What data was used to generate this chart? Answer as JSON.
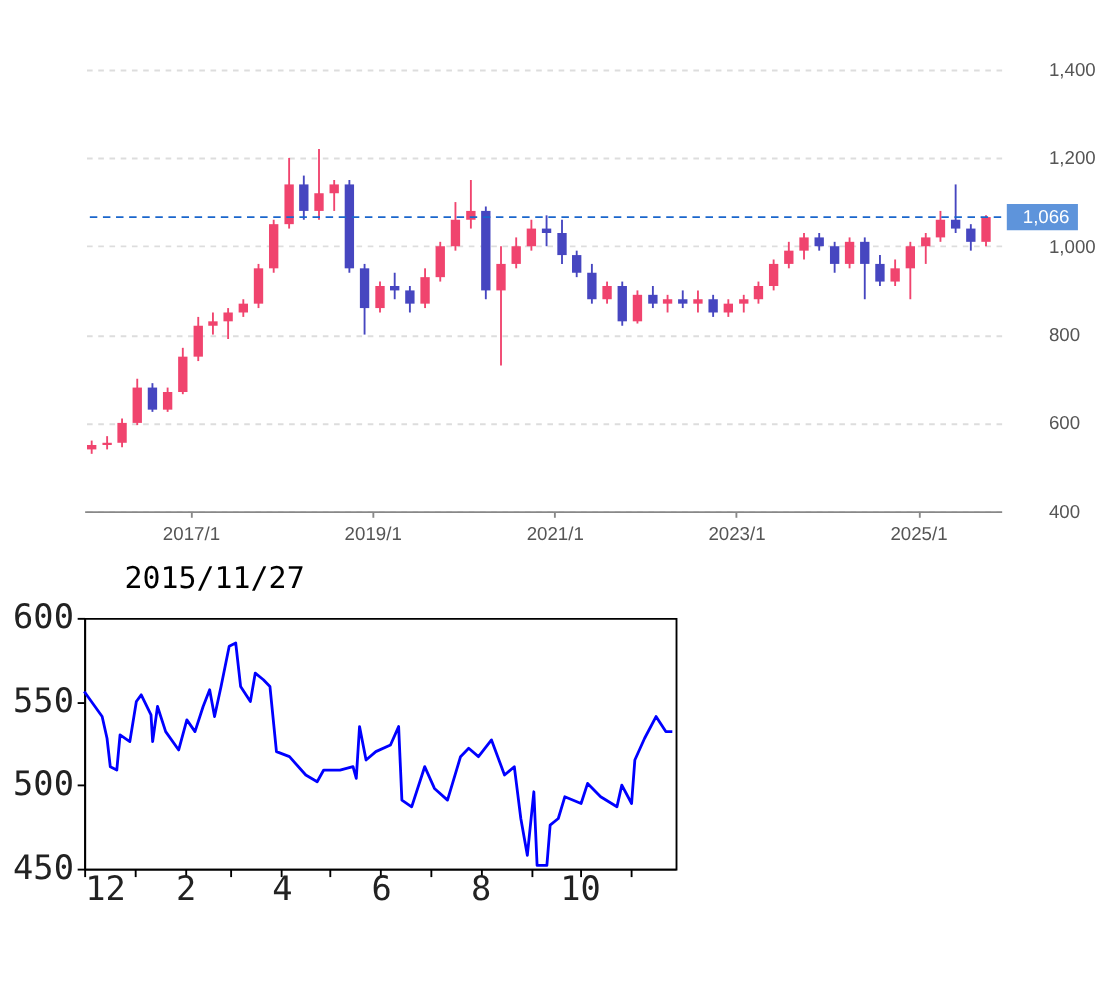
{
  "chart_data": [
    {
      "type": "candlestick",
      "x": [
        "2015-12",
        "2016-02",
        "2016-04",
        "2016-06",
        "2016-08",
        "2016-10",
        "2016-12",
        "2017-02",
        "2017-04",
        "2017-06",
        "2017-08",
        "2017-10",
        "2017-12",
        "2018-02",
        "2018-04",
        "2018-06",
        "2018-08",
        "2018-10",
        "2018-12",
        "2019-02",
        "2019-04",
        "2019-06",
        "2019-08",
        "2019-10",
        "2019-12",
        "2020-02",
        "2020-04",
        "2020-06",
        "2020-08",
        "2020-10",
        "2020-12",
        "2021-02",
        "2021-04",
        "2021-06",
        "2021-08",
        "2021-10",
        "2021-12",
        "2022-02",
        "2022-04",
        "2022-06",
        "2022-08",
        "2022-10",
        "2022-12",
        "2023-02",
        "2023-04",
        "2023-06",
        "2023-08",
        "2023-10",
        "2023-12",
        "2024-02",
        "2024-04",
        "2024-06",
        "2024-08",
        "2024-10",
        "2024-12",
        "2025-02",
        "2025-04",
        "2025-06",
        "2025-08",
        "2025-10"
      ],
      "ohlc": [
        [
          540,
          560,
          530,
          550
        ],
        [
          550,
          570,
          540,
          555
        ],
        [
          555,
          610,
          545,
          600
        ],
        [
          600,
          700,
          595,
          680
        ],
        [
          680,
          690,
          625,
          630
        ],
        [
          630,
          680,
          625,
          670
        ],
        [
          670,
          770,
          665,
          750
        ],
        [
          750,
          840,
          740,
          820
        ],
        [
          820,
          850,
          800,
          830
        ],
        [
          830,
          860,
          790,
          850
        ],
        [
          850,
          880,
          840,
          870
        ],
        [
          870,
          960,
          860,
          950
        ],
        [
          950,
          1060,
          940,
          1050
        ],
        [
          1050,
          1200,
          1040,
          1140
        ],
        [
          1140,
          1160,
          1060,
          1080
        ],
        [
          1080,
          1220,
          1060,
          1120
        ],
        [
          1120,
          1150,
          1080,
          1140
        ],
        [
          1140,
          1150,
          940,
          950
        ],
        [
          950,
          960,
          800,
          860
        ],
        [
          860,
          920,
          850,
          910
        ],
        [
          910,
          940,
          880,
          900
        ],
        [
          900,
          910,
          850,
          870
        ],
        [
          870,
          950,
          860,
          930
        ],
        [
          930,
          1010,
          920,
          1000
        ],
        [
          1000,
          1100,
          990,
          1060
        ],
        [
          1060,
          1150,
          1040,
          1080
        ],
        [
          1080,
          1090,
          880,
          900
        ],
        [
          900,
          1000,
          730,
          960
        ],
        [
          960,
          1020,
          950,
          1000
        ],
        [
          1000,
          1060,
          990,
          1040
        ],
        [
          1040,
          1070,
          1000,
          1030
        ],
        [
          1030,
          1060,
          960,
          980
        ],
        [
          980,
          990,
          930,
          940
        ],
        [
          940,
          960,
          870,
          880
        ],
        [
          880,
          920,
          870,
          910
        ],
        [
          910,
          920,
          820,
          830
        ],
        [
          830,
          900,
          825,
          890
        ],
        [
          890,
          910,
          860,
          870
        ],
        [
          870,
          890,
          850,
          880
        ],
        [
          880,
          900,
          860,
          870
        ],
        [
          870,
          900,
          850,
          880
        ],
        [
          880,
          890,
          840,
          850
        ],
        [
          850,
          880,
          840,
          870
        ],
        [
          870,
          890,
          850,
          880
        ],
        [
          880,
          920,
          870,
          910
        ],
        [
          910,
          970,
          900,
          960
        ],
        [
          960,
          1010,
          950,
          990
        ],
        [
          990,
          1030,
          970,
          1020
        ],
        [
          1020,
          1030,
          990,
          1000
        ],
        [
          1000,
          1010,
          940,
          960
        ],
        [
          960,
          1020,
          950,
          1010
        ],
        [
          1010,
          1020,
          880,
          960
        ],
        [
          960,
          980,
          910,
          920
        ],
        [
          920,
          970,
          910,
          950
        ],
        [
          950,
          1010,
          880,
          1000
        ],
        [
          1000,
          1030,
          960,
          1020
        ],
        [
          1020,
          1080,
          1010,
          1060
        ],
        [
          1060,
          1140,
          1030,
          1040
        ],
        [
          1040,
          1050,
          990,
          1010
        ],
        [
          1010,
          1070,
          1000,
          1066
        ]
      ],
      "colors": [
        "#f0446e",
        "#f0446e",
        "#f0446e",
        "#f0446e",
        "#4646c0",
        "#f0446e",
        "#f0446e",
        "#f0446e",
        "#f0446e",
        "#f0446e",
        "#f0446e",
        "#f0446e",
        "#f0446e",
        "#f0446e",
        "#4646c0",
        "#f0446e",
        "#f0446e",
        "#4646c0",
        "#4646c0",
        "#f0446e",
        "#4646c0",
        "#4646c0",
        "#f0446e",
        "#f0446e",
        "#f0446e",
        "#f0446e",
        "#4646c0",
        "#f0446e",
        "#f0446e",
        "#f0446e",
        "#4646c0",
        "#4646c0",
        "#4646c0",
        "#4646c0",
        "#f0446e",
        "#4646c0",
        "#f0446e",
        "#4646c0",
        "#f0446e",
        "#4646c0",
        "#f0446e",
        "#4646c0",
        "#f0446e",
        "#f0446e",
        "#f0446e",
        "#f0446e",
        "#f0446e",
        "#f0446e",
        "#4646c0",
        "#4646c0",
        "#f0446e",
        "#4646c0",
        "#4646c0",
        "#f0446e",
        "#f0446e",
        "#f0446e",
        "#f0446e",
        "#4646c0",
        "#4646c0",
        "#f0446e"
      ],
      "xlim": [
        "2015-11",
        "2025-12"
      ],
      "xticks": [
        {
          "value": "2017-01",
          "label": "2017/1"
        },
        {
          "value": "2019-01",
          "label": "2019/1"
        },
        {
          "value": "2021-01",
          "label": "2021/1"
        },
        {
          "value": "2023-01",
          "label": "2023/1"
        },
        {
          "value": "2025-01",
          "label": "2025/1"
        }
      ],
      "ylim": [
        400,
        1400
      ],
      "yticks": [
        400,
        600,
        800,
        {
          "value": 1000,
          "label": "1,000"
        },
        {
          "value": 1200,
          "label": "1,200"
        },
        {
          "value": 1400,
          "label": "1,400"
        }
      ],
      "ref_lines": [
        {
          "axis": "y",
          "value": 1066,
          "label": "1,066",
          "color": "#1a66cc",
          "line_style": "dashed"
        }
      ],
      "grid": "y"
    },
    {
      "type": "line",
      "title": "2015/11/27",
      "x": [
        "2014-12-01",
        "2014-12-12",
        "2014-12-15",
        "2014-12-17",
        "2014-12-21",
        "2014-12-23",
        "2014-12-29",
        "2015-01-02",
        "2015-01-05",
        "2015-01-11",
        "2015-01-12",
        "2015-01-15",
        "2015-01-20",
        "2015-01-28",
        "2015-02-02",
        "2015-02-07",
        "2015-02-12",
        "2015-02-16",
        "2015-02-19",
        "2015-02-23",
        "2015-02-28",
        "2015-03-04",
        "2015-03-07",
        "2015-03-13",
        "2015-03-16",
        "2015-03-21",
        "2015-03-25",
        "2015-03-29",
        "2015-04-06",
        "2015-04-16",
        "2015-04-23",
        "2015-04-27",
        "2015-05-07",
        "2015-05-15",
        "2015-05-17",
        "2015-05-19",
        "2015-05-23",
        "2015-05-29",
        "2015-06-07",
        "2015-06-12",
        "2015-06-14",
        "2015-06-20",
        "2015-06-28",
        "2015-07-04",
        "2015-07-12",
        "2015-07-20",
        "2015-07-25",
        "2015-07-31",
        "2015-08-08",
        "2015-08-16",
        "2015-08-22",
        "2015-08-26",
        "2015-08-30",
        "2015-09-03",
        "2015-09-05",
        "2015-09-11",
        "2015-09-13",
        "2015-09-18",
        "2015-09-22",
        "2015-10-02",
        "2015-10-06",
        "2015-10-14",
        "2015-10-24",
        "2015-10-27",
        "2015-11-02",
        "2015-11-04",
        "2015-11-10",
        "2015-11-17",
        "2015-11-23",
        "2015-11-27"
      ],
      "series": [
        {
          "color": "#0000ff",
          "values": [
            556,
            541,
            528,
            511,
            509,
            530,
            526,
            550,
            554,
            542,
            526,
            547,
            532,
            521,
            539,
            532,
            547,
            557,
            541,
            559,
            583,
            585,
            559,
            550,
            567,
            563,
            559,
            520,
            517,
            506,
            502,
            509,
            509,
            511,
            504,
            535,
            515,
            520,
            524,
            535,
            491,
            487,
            511,
            498,
            491,
            517,
            522,
            517,
            527,
            506,
            511,
            480,
            458,
            496,
            452,
            452,
            476,
            480,
            493,
            489,
            501,
            493,
            487,
            500,
            489,
            515,
            528,
            541,
            532,
            532
          ]
        }
      ],
      "xlim": [
        "2014-12-01",
        "2015-11-29"
      ],
      "xticks": [
        {
          "value": "2014-12-01",
          "label": "12"
        },
        {
          "value": "2015-01-01",
          "label": null
        },
        {
          "value": "2015-02-01",
          "label": "2"
        },
        {
          "value": "2015-03-01",
          "label": null
        },
        {
          "value": "2015-04-01",
          "label": "4"
        },
        {
          "value": "2015-05-01",
          "label": null
        },
        {
          "value": "2015-06-01",
          "label": "6"
        },
        {
          "value": "2015-07-01",
          "label": null
        },
        {
          "value": "2015-08-01",
          "label": "8"
        },
        {
          "value": "2015-09-01",
          "label": null
        },
        {
          "value": "2015-10-01",
          "label": "10"
        },
        {
          "value": "2015-11-01",
          "label": null
        }
      ],
      "ylim": [
        450,
        600
      ],
      "yticks": [
        450,
        500,
        550,
        600
      ],
      "grid": false,
      "line_style": "solid"
    }
  ]
}
